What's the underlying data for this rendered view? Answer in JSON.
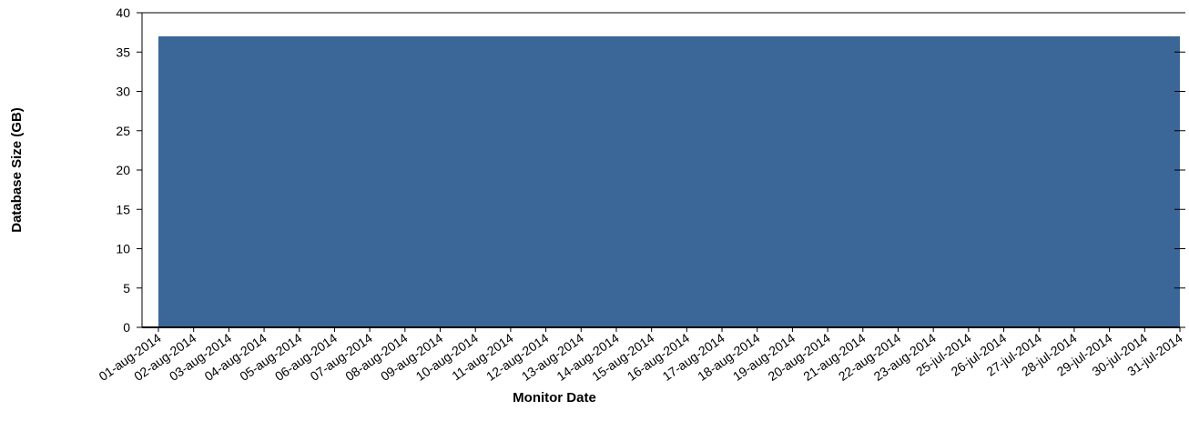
{
  "chart_data": {
    "type": "area",
    "title": "",
    "xlabel": "Monitor Date",
    "ylabel": "Database Size (GB)",
    "ylim": [
      0,
      40
    ],
    "yticks": [
      0,
      5,
      10,
      15,
      20,
      25,
      30,
      35,
      40
    ],
    "grid": false,
    "colors": {
      "fill": "#3b6698",
      "axis": "#000000"
    },
    "categories": [
      "01-aug-2014",
      "02-aug-2014",
      "03-aug-2014",
      "04-aug-2014",
      "05-aug-2014",
      "06-aug-2014",
      "07-aug-2014",
      "08-aug-2014",
      "09-aug-2014",
      "10-aug-2014",
      "11-aug-2014",
      "12-aug-2014",
      "13-aug-2014",
      "14-aug-2014",
      "15-aug-2014",
      "16-aug-2014",
      "17-aug-2014",
      "18-aug-2014",
      "19-aug-2014",
      "20-aug-2014",
      "21-aug-2014",
      "22-aug-2014",
      "23-aug-2014",
      "25-jul-2014",
      "26-jul-2014",
      "27-jul-2014",
      "28-jul-2014",
      "29-jul-2014",
      "30-jul-2014",
      "31-jul-2014"
    ],
    "series": [
      {
        "values": [
          37,
          37,
          37,
          37,
          37,
          37,
          37,
          37,
          37,
          37,
          37,
          37,
          37,
          37,
          37,
          37,
          37,
          37,
          37,
          37,
          37,
          37,
          37,
          37,
          37,
          37,
          37,
          37,
          37,
          37
        ]
      }
    ]
  }
}
